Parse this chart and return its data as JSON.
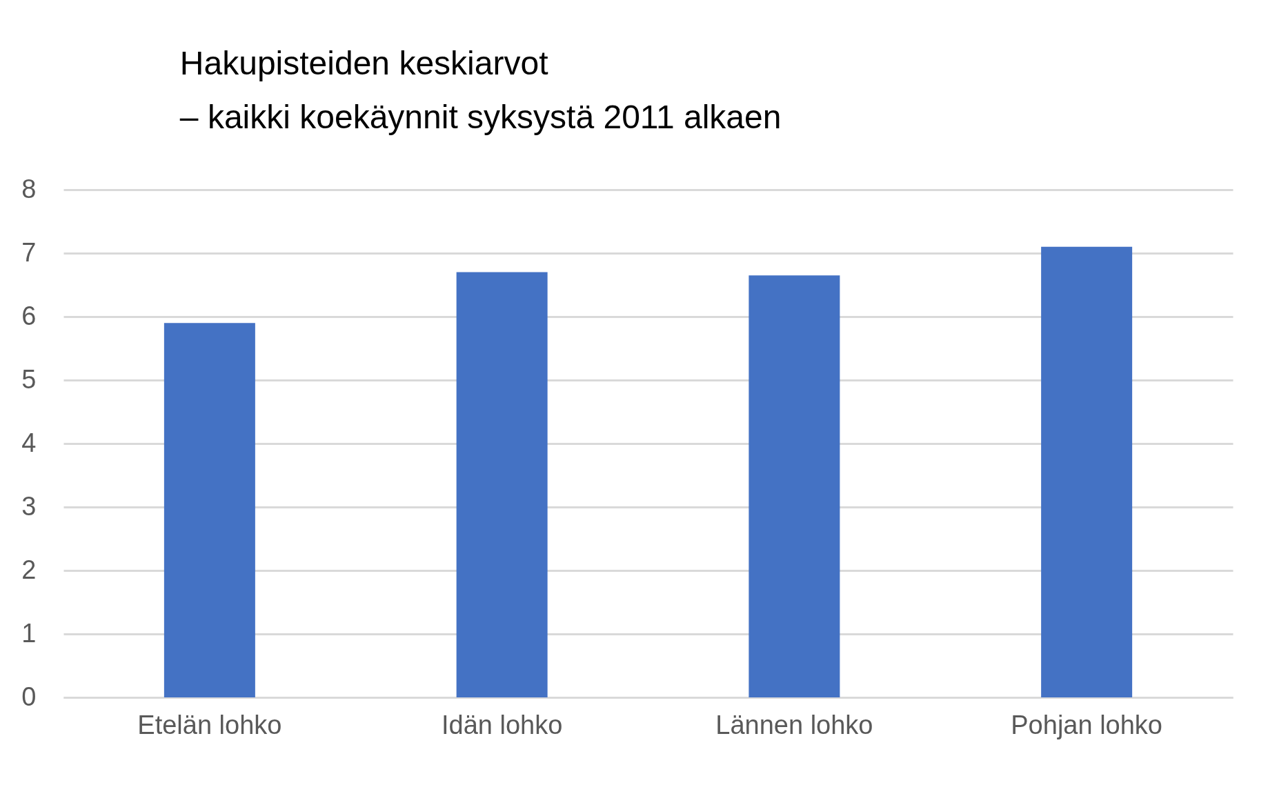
{
  "chart_data": {
    "type": "bar",
    "title": "Hakupisteiden keskiarvot\n– kaikki koekäynnit syksystä 2011 alkaen",
    "categories": [
      "Etelän lohko",
      "Idän lohko",
      "Lännen lohko",
      "Pohjan lohko"
    ],
    "values": [
      5.9,
      6.7,
      6.65,
      7.1
    ],
    "color": "#4472c4",
    "ylim": [
      0,
      8
    ],
    "yticks": [
      0,
      1,
      2,
      3,
      4,
      5,
      6,
      7,
      8
    ],
    "grid": "y"
  }
}
